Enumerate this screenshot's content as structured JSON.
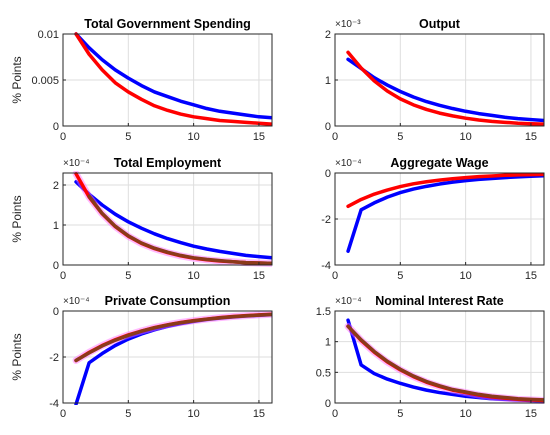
{
  "chart_data": [
    {
      "type": "line",
      "title": "Total Government Spending",
      "ylabel": "% Points",
      "exponent_label": "",
      "xlim": [
        0,
        16
      ],
      "ylim": [
        0,
        0.01
      ],
      "xticks": [
        0,
        5,
        10,
        15
      ],
      "xtick_labels": [
        "0",
        "5",
        "10",
        "15"
      ],
      "yticks": [
        0,
        0.005,
        0.01
      ],
      "ytick_labels": [
        "0",
        "0.005",
        "0.01"
      ],
      "grid": true,
      "x": [
        1,
        2,
        3,
        4,
        5,
        6,
        7,
        8,
        9,
        10,
        11,
        12,
        13,
        14,
        15,
        16
      ],
      "series": [
        {
          "color": "#0000ff",
          "values": [
            0.01,
            0.0085,
            0.0072,
            0.0061,
            0.0052,
            0.0044,
            0.0037,
            0.0032,
            0.0027,
            0.0023,
            0.0019,
            0.0016,
            0.0014,
            0.0012,
            0.001,
            0.0009
          ]
        },
        {
          "color": "#ff0000",
          "values": [
            0.01,
            0.0078,
            0.0061,
            0.0047,
            0.0037,
            0.0029,
            0.0022,
            0.0017,
            0.0013,
            0.001,
            0.0008,
            0.0006,
            0.0005,
            0.0004,
            0.0003,
            0.0002
          ]
        }
      ]
    },
    {
      "type": "line",
      "title": "Output",
      "ylabel": "",
      "exponent_label": "×10⁻³",
      "xlim": [
        0,
        16
      ],
      "ylim": [
        0,
        2
      ],
      "xticks": [
        0,
        5,
        10,
        15
      ],
      "xtick_labels": [
        "0",
        "5",
        "10",
        "15"
      ],
      "yticks": [
        0,
        1,
        2
      ],
      "ytick_labels": [
        "0",
        "1",
        "2"
      ],
      "grid": true,
      "x": [
        1,
        2,
        3,
        4,
        5,
        6,
        7,
        8,
        9,
        10,
        11,
        12,
        13,
        14,
        15,
        16
      ],
      "series": [
        {
          "color": "#0000ff",
          "values": [
            1.45,
            1.25,
            1.05,
            0.89,
            0.75,
            0.63,
            0.53,
            0.45,
            0.38,
            0.32,
            0.27,
            0.23,
            0.19,
            0.16,
            0.14,
            0.12
          ]
        },
        {
          "color": "#ff0000",
          "values": [
            1.6,
            1.26,
            0.98,
            0.76,
            0.59,
            0.46,
            0.36,
            0.28,
            0.22,
            0.17,
            0.13,
            0.1,
            0.08,
            0.06,
            0.05,
            0.04
          ]
        }
      ]
    },
    {
      "type": "line",
      "title": "Total Employment",
      "ylabel": "% Points",
      "exponent_label": "×10⁻⁴",
      "xlim": [
        0,
        16
      ],
      "ylim": [
        0,
        2.3
      ],
      "xticks": [
        0,
        5,
        10,
        15
      ],
      "xtick_labels": [
        "0",
        "5",
        "10",
        "15"
      ],
      "yticks": [
        0,
        1,
        2
      ],
      "ytick_labels": [
        "0",
        "1",
        "2"
      ],
      "grid": true,
      "x": [
        1,
        2,
        3,
        4,
        5,
        6,
        7,
        8,
        9,
        10,
        11,
        12,
        13,
        14,
        15,
        16
      ],
      "series": [
        {
          "color": "#0000ff",
          "values": [
            2.08,
            1.77,
            1.5,
            1.27,
            1.08,
            0.92,
            0.78,
            0.66,
            0.56,
            0.47,
            0.4,
            0.34,
            0.29,
            0.24,
            0.21,
            0.18
          ]
        },
        {
          "color": "#ff66ff",
          "opacity": 0.45,
          "width": 7,
          "values": [
            2.28,
            1.7,
            1.28,
            0.96,
            0.72,
            0.54,
            0.41,
            0.31,
            0.23,
            0.17,
            0.13,
            0.1,
            0.08,
            0.06,
            0.05,
            0.04
          ]
        },
        {
          "color": "#ff0000",
          "values": [
            2.28,
            1.7,
            1.28,
            0.96,
            0.72,
            0.54,
            0.41,
            0.31,
            0.23,
            0.17,
            0.13,
            0.1,
            0.08,
            0.06,
            0.05,
            0.04
          ]
        },
        {
          "color": "#8b3a1a",
          "values": [
            null,
            1.72,
            1.29,
            0.97,
            0.73,
            0.55,
            0.42,
            0.32,
            0.24,
            0.18,
            0.14,
            0.11,
            0.08,
            0.06,
            0.05,
            0.04
          ]
        }
      ]
    },
    {
      "type": "line",
      "title": "Aggregate Wage",
      "ylabel": "",
      "exponent_label": "×10⁻⁴",
      "xlim": [
        0,
        16
      ],
      "ylim": [
        -4,
        0
      ],
      "xticks": [
        0,
        5,
        10,
        15
      ],
      "xtick_labels": [
        "0",
        "5",
        "10",
        "15"
      ],
      "yticks": [
        -4,
        -2,
        0
      ],
      "ytick_labels": [
        "-4",
        "-2",
        "0"
      ],
      "grid": true,
      "x": [
        1,
        2,
        3,
        4,
        5,
        6,
        7,
        8,
        9,
        10,
        11,
        12,
        13,
        14,
        15,
        16
      ],
      "series": [
        {
          "color": "#0000ff",
          "values": [
            -3.4,
            -1.6,
            -1.3,
            -1.05,
            -0.85,
            -0.7,
            -0.58,
            -0.48,
            -0.4,
            -0.33,
            -0.28,
            -0.24,
            -0.2,
            -0.17,
            -0.14,
            -0.12
          ]
        },
        {
          "color": "#ff0000",
          "values": [
            -1.45,
            -1.15,
            -0.92,
            -0.74,
            -0.59,
            -0.47,
            -0.38,
            -0.31,
            -0.25,
            -0.2,
            -0.16,
            -0.13,
            -0.1,
            -0.08,
            -0.07,
            -0.06
          ]
        }
      ]
    },
    {
      "type": "line",
      "title": "Private Consumption",
      "ylabel": "% Points",
      "exponent_label": "×10⁻⁴",
      "xlim": [
        0,
        16
      ],
      "ylim": [
        -4,
        0
      ],
      "xticks": [
        0,
        5,
        10,
        15
      ],
      "xtick_labels": [
        "0",
        "5",
        "10",
        "15"
      ],
      "yticks": [
        -4,
        -2,
        0
      ],
      "ytick_labels": [
        "-4",
        "-2",
        "0"
      ],
      "grid": true,
      "x": [
        1,
        2,
        3,
        4,
        5,
        6,
        7,
        8,
        9,
        10,
        11,
        12,
        13,
        14,
        15,
        16
      ],
      "series": [
        {
          "color": "#0000ff",
          "values": [
            -4.05,
            -2.25,
            -1.85,
            -1.5,
            -1.22,
            -1.0,
            -0.82,
            -0.67,
            -0.55,
            -0.45,
            -0.37,
            -0.31,
            -0.26,
            -0.22,
            -0.19,
            -0.16
          ]
        },
        {
          "color": "#ff66ff",
          "opacity": 0.45,
          "width": 7,
          "values": [
            -2.15,
            -1.8,
            -1.5,
            -1.25,
            -1.04,
            -0.87,
            -0.72,
            -0.6,
            -0.5,
            -0.42,
            -0.35,
            -0.29,
            -0.24,
            -0.2,
            -0.17,
            -0.14
          ]
        },
        {
          "color": "#ff0000",
          "values": [
            -2.15,
            -1.8,
            -1.5,
            -1.25,
            -1.04,
            -0.87,
            -0.72,
            -0.6,
            -0.5,
            -0.42,
            -0.35,
            -0.29,
            -0.24,
            -0.2,
            -0.17,
            -0.14
          ]
        },
        {
          "color": "#8b3a1a",
          "values": [
            -2.15,
            -1.82,
            -1.52,
            -1.27,
            -1.06,
            -0.88,
            -0.73,
            -0.61,
            -0.51,
            -0.43,
            -0.36,
            -0.3,
            -0.25,
            -0.21,
            -0.18,
            -0.15
          ]
        }
      ]
    },
    {
      "type": "line",
      "title": "Nominal Interest Rate",
      "ylabel": "",
      "exponent_label": "×10⁻⁴",
      "xlim": [
        0,
        16
      ],
      "ylim": [
        0,
        1.5
      ],
      "xticks": [
        0,
        5,
        10,
        15
      ],
      "xtick_labels": [
        "0",
        "5",
        "10",
        "15"
      ],
      "yticks": [
        0,
        0.5,
        1,
        1.5
      ],
      "ytick_labels": [
        "0",
        "0.5",
        "1",
        "1.5"
      ],
      "grid": true,
      "x": [
        1,
        2,
        3,
        4,
        5,
        6,
        7,
        8,
        9,
        10,
        11,
        12,
        13,
        14,
        15,
        16
      ],
      "series": [
        {
          "color": "#0000ff",
          "values": [
            1.35,
            0.62,
            0.48,
            0.39,
            0.32,
            0.26,
            0.21,
            0.17,
            0.14,
            0.11,
            0.09,
            0.07,
            0.06,
            0.05,
            0.04,
            0.03
          ]
        },
        {
          "color": "#ff66ff",
          "opacity": 0.45,
          "width": 7,
          "values": [
            1.25,
            1.02,
            0.83,
            0.67,
            0.54,
            0.43,
            0.34,
            0.27,
            0.21,
            0.17,
            0.13,
            0.1,
            0.08,
            0.06,
            0.05,
            0.04
          ]
        },
        {
          "color": "#ff0000",
          "values": [
            1.25,
            1.02,
            0.83,
            0.67,
            0.54,
            0.43,
            0.34,
            0.27,
            0.21,
            0.17,
            0.13,
            0.1,
            0.08,
            0.06,
            0.05,
            0.04
          ]
        },
        {
          "color": "#8b3a1a",
          "values": [
            1.25,
            1.03,
            0.84,
            0.68,
            0.55,
            0.44,
            0.35,
            0.28,
            0.22,
            0.18,
            0.14,
            0.11,
            0.09,
            0.07,
            0.06,
            0.05
          ]
        }
      ]
    }
  ]
}
